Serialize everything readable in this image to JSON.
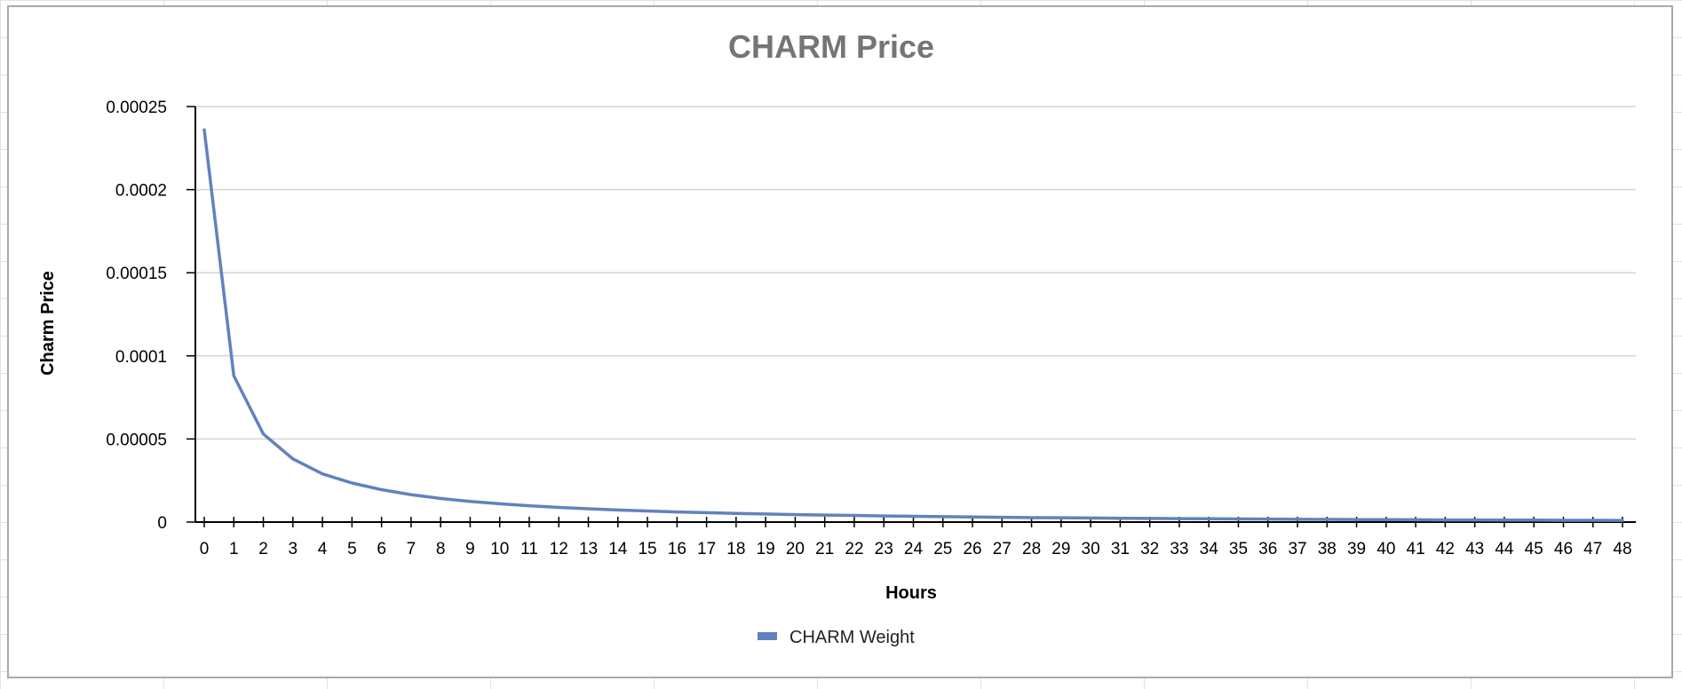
{
  "chart_data": {
    "type": "line",
    "title": "CHARM Price",
    "xlabel": "Hours",
    "ylabel": "Charm Price",
    "x": [
      0,
      1,
      2,
      3,
      4,
      5,
      6,
      7,
      8,
      9,
      10,
      11,
      12,
      13,
      14,
      15,
      16,
      17,
      18,
      19,
      20,
      21,
      22,
      23,
      24,
      25,
      26,
      27,
      28,
      29,
      30,
      31,
      32,
      33,
      34,
      35,
      36,
      37,
      38,
      39,
      40,
      41,
      42,
      43,
      44,
      45,
      46,
      47,
      48
    ],
    "series": [
      {
        "name": "CHARM Weight",
        "color": "#6182bd",
        "values": [
          0.000236,
          8.8e-05,
          5.3e-05,
          3.8e-05,
          2.9e-05,
          2.35e-05,
          1.95e-05,
          1.65e-05,
          1.42e-05,
          1.24e-05,
          1.1e-05,
          9.8e-06,
          8.8e-06,
          8e-06,
          7.3e-06,
          6.7e-06,
          6.1e-06,
          5.7e-06,
          5.2e-06,
          4.9e-06,
          4.5e-06,
          4.2e-06,
          4e-06,
          3.7e-06,
          3.5e-06,
          3.3e-06,
          3.1e-06,
          2.9e-06,
          2.7e-06,
          2.6e-06,
          2.5e-06,
          2.3e-06,
          2.2e-06,
          2.1e-06,
          2e-06,
          1.9e-06,
          1.8e-06,
          1.7e-06,
          1.6e-06,
          1.5e-06,
          1.5e-06,
          1.4e-06,
          1.3e-06,
          1.3e-06,
          1.2e-06,
          1.2e-06,
          1.1e-06,
          1.1e-06,
          1e-06
        ]
      }
    ],
    "yticks": [
      0,
      5e-05,
      0.0001,
      0.00015,
      0.0002,
      0.00025
    ],
    "ytick_labels": [
      "0",
      "0.00005",
      "0.0001",
      "0.00015",
      "0.0002",
      "0.00025"
    ],
    "ylim": [
      0,
      0.00025
    ],
    "xlim": [
      0,
      48
    ],
    "grid": true,
    "legend_position": "bottom"
  }
}
